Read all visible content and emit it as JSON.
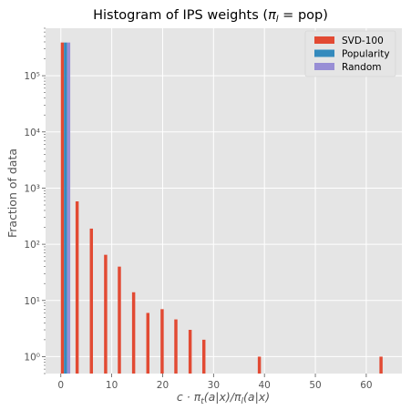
{
  "chart_data": {
    "type": "bar",
    "title_prefix": "Histogram of IPS weights (",
    "title_math": "π",
    "title_math_sub": "l",
    "title_suffix": " = pop)",
    "ylabel": "Fraction of data",
    "xlabel_text": "c · π_t(a|x)/π_l(a|x)",
    "y_scale": "log",
    "ylim": [
      0.5,
      700000
    ],
    "xlim": [
      -3,
      67
    ],
    "x_ticks": [
      0,
      10,
      20,
      30,
      40,
      50,
      60
    ],
    "x_tick_labels": [
      "0",
      "10",
      "20",
      "30",
      "40",
      "50",
      "60"
    ],
    "y_tick_values": [
      1,
      10,
      100,
      1000,
      10000,
      100000
    ],
    "y_tick_labels": [
      "10⁰",
      "10¹",
      "10²",
      "10³",
      "10⁴",
      "10⁵"
    ],
    "bin_width": 0.62,
    "grid": true,
    "legend_position": "top-right",
    "series": [
      {
        "name": "SVD-100",
        "color": "#E24A33",
        "x": [
          0.3,
          3.2,
          6.0,
          8.8,
          11.5,
          14.3,
          17.1,
          19.9,
          22.6,
          25.4,
          28.1,
          39.0,
          62.9
        ],
        "values": [
          390000,
          580,
          190,
          65,
          40,
          14,
          6,
          7,
          4.6,
          3,
          2,
          1,
          1
        ]
      },
      {
        "name": "Popularity",
        "color": "#348ABD",
        "x": [
          0.92
        ],
        "values": [
          390000
        ]
      },
      {
        "name": "Random",
        "color": "#988ED5",
        "x": [
          1.54
        ],
        "values": [
          390000
        ]
      }
    ]
  }
}
